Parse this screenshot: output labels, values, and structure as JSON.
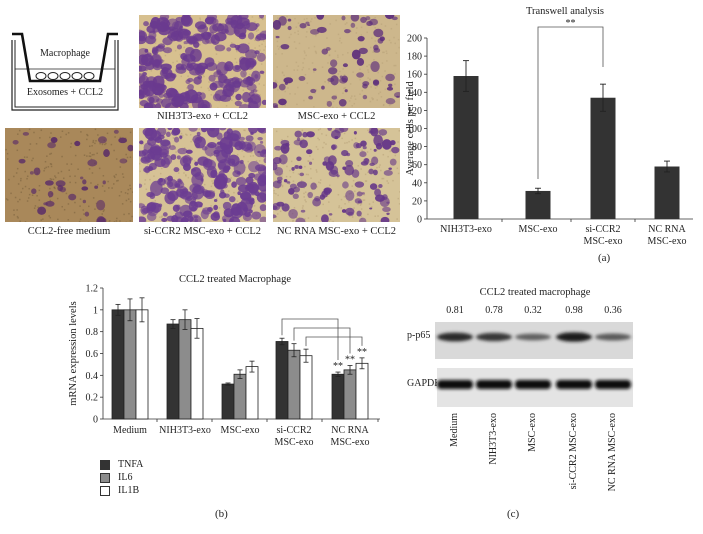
{
  "panel_a": {
    "label": "(a)",
    "schematic": {
      "top_label": "Macrophage",
      "bottom_label": "Exosomes + CCL2"
    },
    "images": [
      {
        "caption": "NIH3T3-exo + CCL2",
        "density": "high",
        "bg": "#d7c08f",
        "stain": "#6a3a8f"
      },
      {
        "caption": "MSC-exo + CCL2",
        "density": "low",
        "bg": "#cdb78c",
        "stain": "#5e2f7c"
      },
      {
        "caption": "CCL2-free medium",
        "density": "very-low",
        "bg": "#a9885a",
        "stain": "#5b2d68"
      },
      {
        "caption": "si-CCR2 MSC-exo + CCL2",
        "density": "high",
        "bg": "#d6c296",
        "stain": "#6b3c92"
      },
      {
        "caption": "NC RNA MSC-exo + CCL2",
        "density": "medium",
        "bg": "#d5c398",
        "stain": "#643588"
      }
    ]
  },
  "panel_b": {
    "label": "(b)",
    "legend": [
      {
        "name": "TNFA",
        "color": "#333333"
      },
      {
        "name": "IL6",
        "color": "#8c8c8c"
      },
      {
        "name": "IL1B",
        "color": "#ffffff"
      }
    ]
  },
  "panel_c": {
    "label": "(c)",
    "title": "CCL2 treated macrophage",
    "row_labels": [
      "p-p65",
      "GAPDH"
    ],
    "quantification": [
      "0.81",
      "0.78",
      "0.32",
      "0.98",
      "0.36"
    ],
    "lanes": [
      "Medium",
      "NIH3T3-exo",
      "MSC-exo",
      "si-CCR2 MSC-exo",
      "NC RNA MSC-exo"
    ],
    "p65_intensity": [
      0.85,
      0.75,
      0.45,
      0.95,
      0.5
    ],
    "gapdh_intensity": [
      1.0,
      0.95,
      0.95,
      0.95,
      0.95
    ]
  },
  "chart_data": [
    {
      "type": "bar",
      "title": "Transwell analysis",
      "xlabel": "",
      "ylabel": "Average cells per field",
      "ylim": [
        0,
        200
      ],
      "yticks": [
        0,
        20,
        40,
        60,
        80,
        100,
        120,
        140,
        160,
        180,
        200
      ],
      "categories": [
        "NIH3T3-exo",
        "MSC-exo",
        "si-CCR2\nMSC-exo",
        "NC RNA\nMSC-exo"
      ],
      "category_lines": [
        [
          "NIH3T3-exo"
        ],
        [
          "MSC-exo"
        ],
        [
          "si-CCR2",
          "MSC-exo"
        ],
        [
          "NC RNA",
          "MSC-exo"
        ]
      ],
      "values": [
        158,
        31,
        134,
        58
      ],
      "errors": [
        17,
        3,
        15,
        6
      ],
      "bar_color": "#333333",
      "annotations": [
        {
          "text": "**",
          "between": [
            "MSC-exo",
            "si-CCR2\nMSC-exo"
          ]
        }
      ],
      "grid": false,
      "legend": null
    },
    {
      "type": "bar",
      "title": "CCL2 treated Macrophage",
      "xlabel": "",
      "ylabel": "mRNA expression levels",
      "ylim": [
        0,
        1.2
      ],
      "yticks": [
        "0",
        "0.2",
        "0.4",
        "0.6",
        "0.8",
        "1",
        "1.2"
      ],
      "categories": [
        "Medium",
        "NIH3T3-exo",
        "MSC-exo",
        "si-CCR2\nMSC-exo",
        "NC RNA\nMSC-exo"
      ],
      "category_lines": [
        [
          "Medium"
        ],
        [
          "NIH3T3-exo"
        ],
        [
          "MSC-exo"
        ],
        [
          "si-CCR2",
          "MSC-exo"
        ],
        [
          "NC RNA",
          "MSC-exo"
        ]
      ],
      "series": [
        {
          "name": "TNFA",
          "color": "#333333",
          "values": [
            1.0,
            0.87,
            0.32,
            0.71,
            0.41
          ],
          "errors": [
            0.05,
            0.04,
            0.01,
            0.03,
            0.02
          ]
        },
        {
          "name": "IL6",
          "color": "#8c8c8c",
          "values": [
            1.0,
            0.91,
            0.41,
            0.63,
            0.45
          ],
          "errors": [
            0.1,
            0.09,
            0.04,
            0.06,
            0.04
          ]
        },
        {
          "name": "IL1B",
          "color": "#ffffff",
          "values": [
            1.0,
            0.83,
            0.48,
            0.58,
            0.51
          ],
          "errors": [
            0.11,
            0.09,
            0.05,
            0.06,
            0.05
          ]
        }
      ],
      "annotations": [
        {
          "text": "**",
          "series": "TNFA",
          "between": [
            "si-CCR2\nMSC-exo",
            "NC RNA\nMSC-exo"
          ]
        },
        {
          "text": "**",
          "series": "IL6",
          "between": [
            "si-CCR2\nMSC-exo",
            "NC RNA\nMSC-exo"
          ]
        },
        {
          "text": "**",
          "series": "IL1B",
          "between": [
            "si-CCR2\nMSC-exo",
            "NC RNA\nMSC-exo"
          ]
        }
      ],
      "legend_position": "bottom-left",
      "grid": false
    }
  ]
}
